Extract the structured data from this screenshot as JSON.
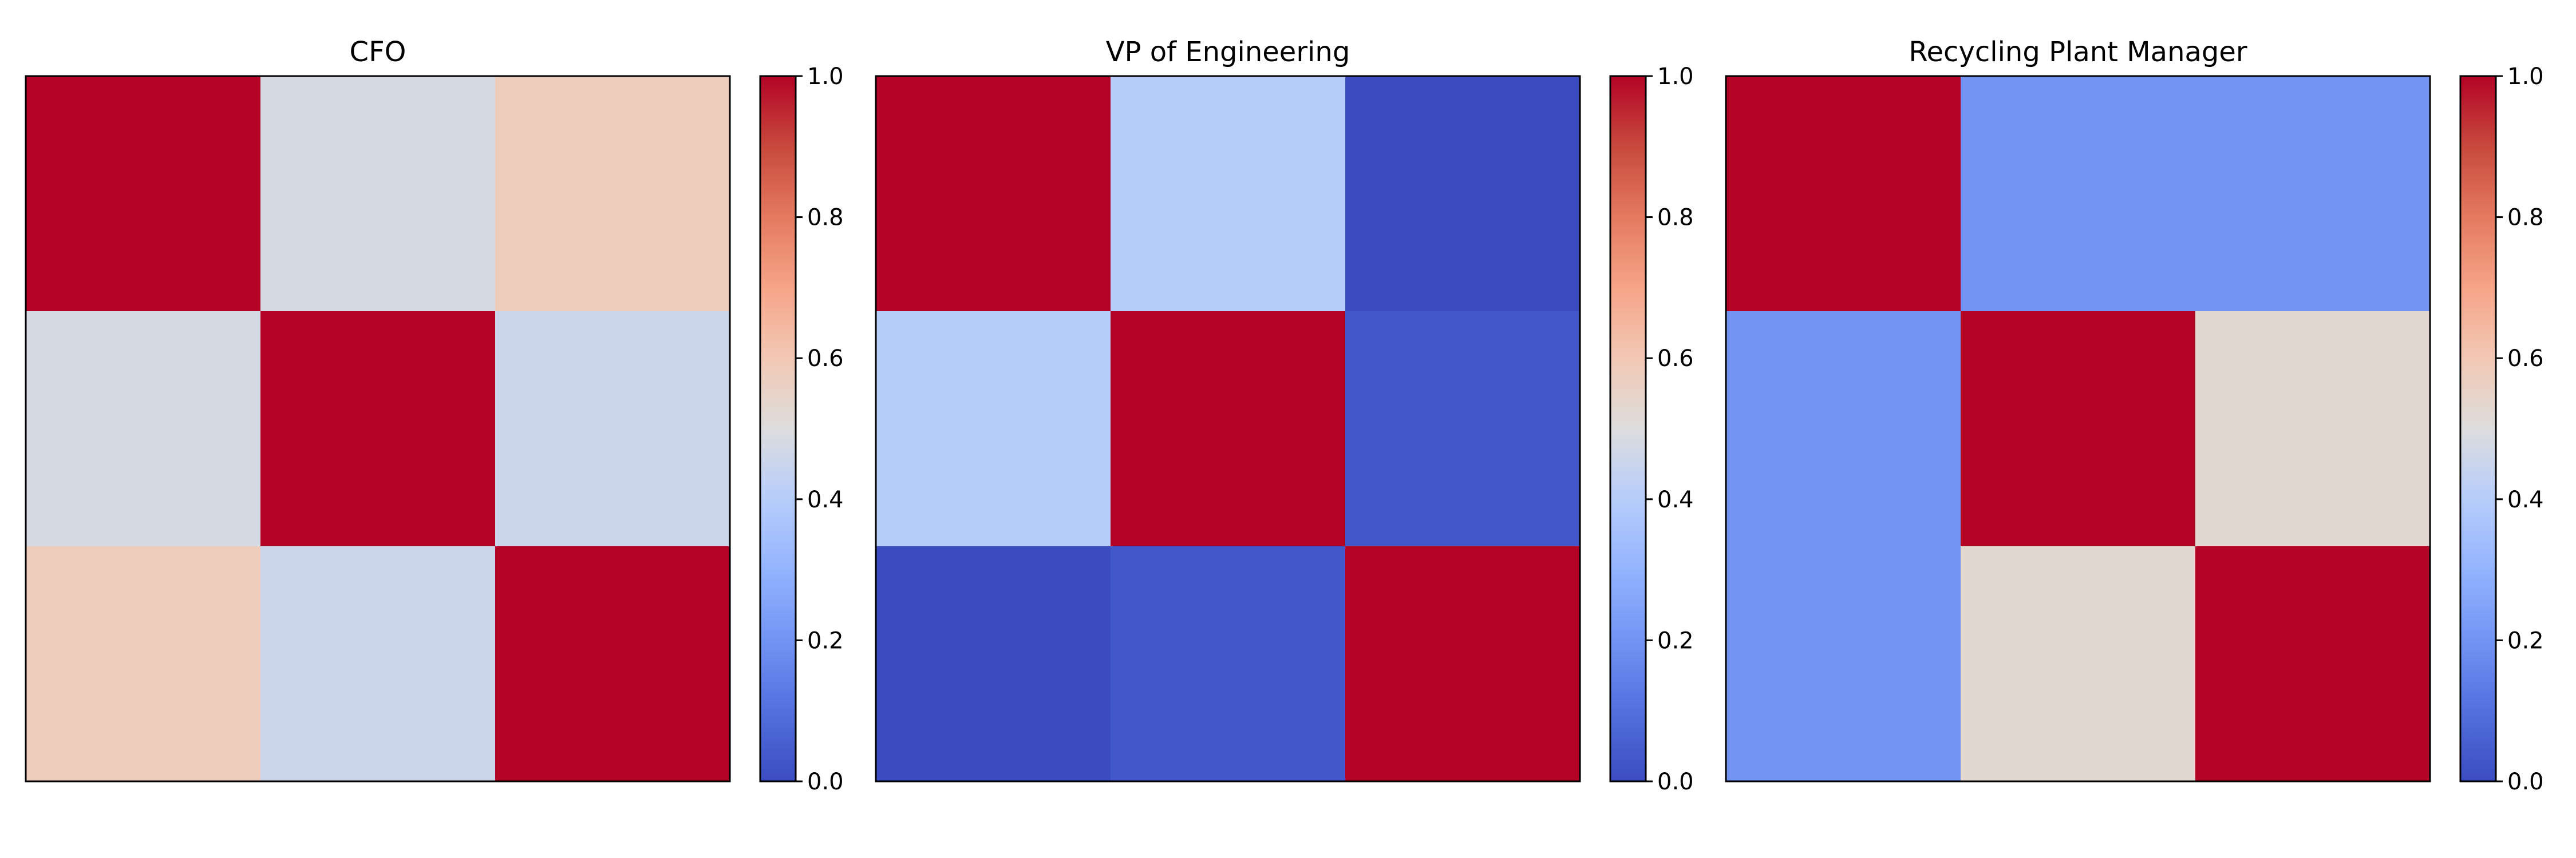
{
  "colormap": "coolwarm",
  "chart_data": [
    {
      "type": "heatmap",
      "title": "CFO",
      "matrix": [
        [
          1.0,
          0.48,
          0.58
        ],
        [
          0.48,
          1.0,
          0.45
        ],
        [
          0.58,
          0.45,
          1.0
        ]
      ],
      "vmin": 0.0,
      "vmax": 1.0,
      "colorbar": {
        "ticks": [
          "0.0",
          "0.2",
          "0.4",
          "0.6",
          "0.8",
          "1.0"
        ]
      }
    },
    {
      "type": "heatmap",
      "title": "VP of Engineering",
      "matrix": [
        [
          1.0,
          0.4,
          0.0
        ],
        [
          0.4,
          1.0,
          0.03
        ],
        [
          0.0,
          0.03,
          1.0
        ]
      ],
      "vmin": 0.0,
      "vmax": 1.0,
      "colorbar": {
        "ticks": [
          "0.0",
          "0.2",
          "0.4",
          "0.6",
          "0.8",
          "1.0"
        ]
      }
    },
    {
      "type": "heatmap",
      "title": "Recycling Plant Manager",
      "matrix": [
        [
          1.0,
          0.2,
          0.2
        ],
        [
          0.2,
          1.0,
          0.53
        ],
        [
          0.2,
          0.53,
          1.0
        ]
      ],
      "vmin": 0.0,
      "vmax": 1.0,
      "colorbar": {
        "ticks": [
          "0.0",
          "0.2",
          "0.4",
          "0.6",
          "0.8",
          "1.0"
        ]
      }
    }
  ]
}
